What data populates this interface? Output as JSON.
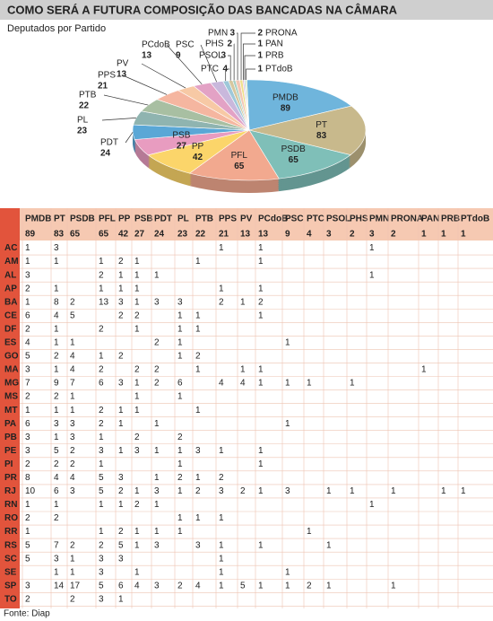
{
  "title": "COMO SERÁ A FUTURA COMPOSIÇÃO DAS  BANCADAS NA CÂMARA",
  "chart_data": {
    "type": "pie",
    "subtitle": "Deputados por Partido",
    "categories": [
      "PMDB",
      "PT",
      "PSDB",
      "PFL",
      "PP",
      "PSB",
      "PDT",
      "PL",
      "PTB",
      "PPS",
      "PV",
      "PCdoB",
      "PSC",
      "PTC",
      "PSOL",
      "PHS",
      "PMN",
      "PRONA",
      "PAN",
      "PRB",
      "PTdoB"
    ],
    "values": [
      89,
      83,
      65,
      65,
      42,
      27,
      24,
      23,
      22,
      21,
      13,
      13,
      9,
      4,
      3,
      2,
      3,
      2,
      1,
      1,
      1
    ],
    "colors": [
      "#6fb5dc",
      "#c8b98c",
      "#7fbfb8",
      "#f2a98f",
      "#fbd56a",
      "#e89cc0",
      "#5aa7d6",
      "#8fb4b0",
      "#a8bfa2",
      "#f5b6a0",
      "#f7c9a5",
      "#e3a2c5",
      "#c9b8dc",
      "#9ec8d9",
      "#d6c79e",
      "#a6d0c4",
      "#f3c6b4",
      "#f0e08a",
      "#e7b6cf",
      "#b7d6ea",
      "#cfe2b6"
    ]
  },
  "table": {
    "columns": [
      "PMDB",
      "PT",
      "PSDB",
      "PFL",
      "PP",
      "PSB",
      "PDT",
      "PL",
      "PTB",
      "PPS",
      "PV",
      "PCdoB",
      "PSC",
      "PTC",
      "PSOL",
      "PHS",
      "PMN",
      "PRONA",
      "PAN",
      "PRB",
      "PTdoB"
    ],
    "totals": [
      89,
      83,
      65,
      65,
      42,
      27,
      24,
      23,
      22,
      21,
      13,
      13,
      9,
      4,
      3,
      2,
      3,
      2,
      1,
      1,
      1
    ],
    "rows": [
      {
        "state": "AC",
        "values": [
          1,
          3,
          null,
          null,
          null,
          null,
          null,
          null,
          null,
          1,
          null,
          1,
          null,
          null,
          null,
          null,
          1,
          null,
          null,
          null,
          null
        ]
      },
      {
        "state": "AM",
        "values": [
          1,
          1,
          null,
          1,
          2,
          1,
          null,
          null,
          1,
          null,
          null,
          1,
          null,
          null,
          null,
          null,
          null,
          null,
          null,
          null,
          null
        ]
      },
      {
        "state": "AL",
        "values": [
          3,
          null,
          null,
          2,
          1,
          1,
          1,
          null,
          null,
          null,
          null,
          null,
          null,
          null,
          null,
          null,
          1,
          null,
          null,
          null,
          null
        ]
      },
      {
        "state": "AP",
        "values": [
          2,
          1,
          null,
          1,
          1,
          1,
          null,
          null,
          null,
          1,
          null,
          1,
          null,
          null,
          null,
          null,
          null,
          null,
          null,
          null,
          null
        ]
      },
      {
        "state": "BA",
        "values": [
          1,
          8,
          2,
          13,
          3,
          1,
          3,
          3,
          null,
          2,
          1,
          2,
          null,
          null,
          null,
          null,
          null,
          null,
          null,
          null,
          null
        ]
      },
      {
        "state": "CE",
        "values": [
          6,
          4,
          5,
          null,
          2,
          2,
          null,
          1,
          1,
          null,
          null,
          1,
          null,
          null,
          null,
          null,
          null,
          null,
          null,
          null,
          null
        ]
      },
      {
        "state": "DF",
        "values": [
          2,
          1,
          null,
          2,
          null,
          1,
          null,
          1,
          1,
          null,
          null,
          null,
          null,
          null,
          null,
          null,
          null,
          null,
          null,
          null,
          null
        ]
      },
      {
        "state": "ES",
        "values": [
          4,
          1,
          1,
          null,
          null,
          null,
          2,
          1,
          null,
          null,
          null,
          null,
          1,
          null,
          null,
          null,
          null,
          null,
          null,
          null,
          null
        ]
      },
      {
        "state": "GO",
        "values": [
          5,
          2,
          4,
          1,
          2,
          null,
          null,
          1,
          2,
          null,
          null,
          null,
          null,
          null,
          null,
          null,
          null,
          null,
          null,
          null,
          null
        ]
      },
      {
        "state": "MA",
        "values": [
          3,
          1,
          4,
          2,
          null,
          2,
          2,
          null,
          1,
          null,
          1,
          1,
          null,
          null,
          null,
          null,
          null,
          null,
          1,
          null,
          null
        ]
      },
      {
        "state": "MG",
        "values": [
          7,
          9,
          7,
          6,
          3,
          1,
          2,
          6,
          null,
          4,
          4,
          1,
          1,
          1,
          null,
          1,
          null,
          null,
          null,
          null,
          null
        ]
      },
      {
        "state": "MS",
        "values": [
          2,
          2,
          1,
          null,
          null,
          1,
          null,
          1,
          null,
          null,
          null,
          null,
          null,
          null,
          null,
          null,
          null,
          null,
          null,
          null,
          null
        ]
      },
      {
        "state": "MT",
        "values": [
          1,
          1,
          1,
          2,
          1,
          1,
          null,
          null,
          1,
          null,
          null,
          null,
          null,
          null,
          null,
          null,
          null,
          null,
          null,
          null,
          null
        ]
      },
      {
        "state": "PA",
        "values": [
          6,
          3,
          3,
          2,
          1,
          null,
          1,
          null,
          null,
          null,
          null,
          null,
          1,
          null,
          null,
          null,
          null,
          null,
          null,
          null,
          null
        ]
      },
      {
        "state": "PB",
        "values": [
          3,
          1,
          3,
          1,
          null,
          2,
          null,
          2,
          null,
          null,
          null,
          null,
          null,
          null,
          null,
          null,
          null,
          null,
          null,
          null,
          null
        ]
      },
      {
        "state": "PE",
        "values": [
          3,
          5,
          2,
          3,
          1,
          3,
          1,
          1,
          3,
          1,
          null,
          1,
          null,
          null,
          null,
          null,
          null,
          null,
          null,
          null,
          null
        ]
      },
      {
        "state": "PI",
        "values": [
          2,
          2,
          2,
          1,
          null,
          null,
          null,
          1,
          null,
          null,
          null,
          1,
          null,
          null,
          null,
          null,
          null,
          null,
          null,
          null,
          null
        ]
      },
      {
        "state": "PR",
        "values": [
          8,
          4,
          4,
          5,
          3,
          null,
          1,
          2,
          1,
          2,
          null,
          null,
          null,
          null,
          null,
          null,
          null,
          null,
          null,
          null,
          null
        ]
      },
      {
        "state": "RJ",
        "values": [
          10,
          6,
          3,
          5,
          2,
          1,
          3,
          1,
          2,
          3,
          2,
          1,
          3,
          null,
          1,
          1,
          null,
          1,
          null,
          1,
          1
        ]
      },
      {
        "state": "RN",
        "values": [
          1,
          1,
          null,
          1,
          1,
          2,
          1,
          null,
          null,
          null,
          null,
          null,
          null,
          null,
          null,
          null,
          1,
          null,
          null,
          null,
          null
        ]
      },
      {
        "state": "RO",
        "values": [
          2,
          2,
          null,
          null,
          null,
          null,
          null,
          1,
          1,
          1,
          null,
          null,
          null,
          null,
          null,
          null,
          null,
          null,
          null,
          null,
          null
        ]
      },
      {
        "state": "RR",
        "values": [
          1,
          null,
          null,
          1,
          2,
          1,
          1,
          1,
          null,
          null,
          null,
          null,
          null,
          1,
          null,
          null,
          null,
          null,
          null,
          null,
          null
        ]
      },
      {
        "state": "RS",
        "values": [
          5,
          7,
          2,
          2,
          5,
          1,
          3,
          null,
          3,
          1,
          null,
          1,
          null,
          null,
          1,
          null,
          null,
          null,
          null,
          null,
          null
        ]
      },
      {
        "state": "SC",
        "values": [
          5,
          3,
          1,
          3,
          3,
          null,
          null,
          null,
          null,
          1,
          null,
          null,
          null,
          null,
          null,
          null,
          null,
          null,
          null,
          null,
          null
        ]
      },
      {
        "state": "SE",
        "values": [
          null,
          1,
          1,
          3,
          null,
          1,
          null,
          null,
          null,
          1,
          null,
          null,
          1,
          null,
          null,
          null,
          null,
          null,
          null,
          null,
          null
        ]
      },
      {
        "state": "SP",
        "values": [
          3,
          14,
          17,
          5,
          6,
          4,
          3,
          2,
          4,
          1,
          5,
          1,
          1,
          2,
          1,
          null,
          null,
          1,
          null,
          null,
          null
        ]
      },
      {
        "state": "TO",
        "values": [
          2,
          null,
          2,
          3,
          1,
          null,
          null,
          null,
          null,
          null,
          null,
          null,
          null,
          null,
          null,
          null,
          null,
          null,
          null,
          null,
          null
        ]
      }
    ]
  },
  "source": "Fonte: Diap"
}
